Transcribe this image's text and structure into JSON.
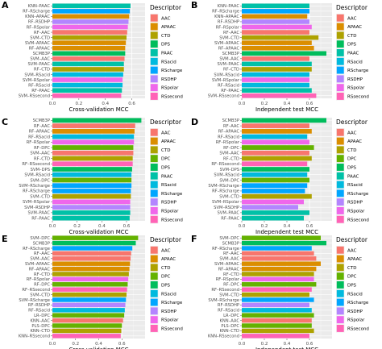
{
  "colors": {
    "AAC": "#F8766D",
    "APAAC": "#DB8E00",
    "CTD": "#AEA200",
    "DPC": "#64B200",
    "DPS": "#00BD5C",
    "PAAC": "#00C1A7",
    "RSacid": "#00BADE",
    "RScharge": "#00A6FF",
    "RSDHP": "#B385FF",
    "RSpolar": "#EF67EB",
    "RSsecond": "#FF63B6"
  },
  "chart_data": [
    {
      "panel": "A",
      "type": "bar",
      "orientation": "horizontal",
      "xlabel": "Cross-validation MCC",
      "xticks": [
        "0.0",
        "0.2",
        "0.4",
        "0.6"
      ],
      "xlim": [
        0,
        0.7
      ],
      "legend_title": "Descriptor",
      "legend": [
        "AAC",
        "APAAC",
        "CTD",
        "DPS",
        "PAAC",
        "RSacid",
        "RScharge",
        "RSDHP",
        "RSpolar",
        "RSsecond"
      ],
      "bars": [
        {
          "label": "KNN–PAAC",
          "value": 0.59,
          "descriptor": "PAAC"
        },
        {
          "label": "RF–RScharge",
          "value": 0.585,
          "descriptor": "RScharge"
        },
        {
          "label": "KNN–APAAC",
          "value": 0.58,
          "descriptor": "APAAC"
        },
        {
          "label": "RF–RSDHP",
          "value": 0.575,
          "descriptor": "RSDHP"
        },
        {
          "label": "RF–RSpolar",
          "value": 0.57,
          "descriptor": "RSpolar"
        },
        {
          "label": "RF–AAC",
          "value": 0.565,
          "descriptor": "AAC"
        },
        {
          "label": "SVM–CTD",
          "value": 0.56,
          "descriptor": "CTD"
        },
        {
          "label": "SVM–APAAC",
          "value": 0.555,
          "descriptor": "APAAC"
        },
        {
          "label": "RF–APAAC",
          "value": 0.55,
          "descriptor": "APAAC"
        },
        {
          "label": "SCMB3P",
          "value": 0.55,
          "descriptor": "DPS"
        },
        {
          "label": "SVM–AAC",
          "value": 0.545,
          "descriptor": "AAC"
        },
        {
          "label": "SVM–PAAC",
          "value": 0.54,
          "descriptor": "PAAC"
        },
        {
          "label": "RF–CTD",
          "value": 0.54,
          "descriptor": "CTD"
        },
        {
          "label": "SVM–RSacid",
          "value": 0.535,
          "descriptor": "RSacid"
        },
        {
          "label": "SVM–RSpolar",
          "value": 0.53,
          "descriptor": "RSpolar"
        },
        {
          "label": "RF–RSacid",
          "value": 0.53,
          "descriptor": "RSacid"
        },
        {
          "label": "RF–PAAC",
          "value": 0.525,
          "descriptor": "PAAC"
        },
        {
          "label": "SVM–RSsecond",
          "value": 0.52,
          "descriptor": "RSsecond"
        }
      ]
    },
    {
      "panel": "B",
      "type": "bar",
      "orientation": "horizontal",
      "xlabel": "Independent test MCC",
      "xticks": [
        "0.0",
        "0.2",
        "0.4",
        "0.6"
      ],
      "xlim": [
        0,
        0.8
      ],
      "legend_title": "Descriptor",
      "legend": [
        "AAC",
        "APAAC",
        "CTD",
        "DPS",
        "PAAC",
        "RSacid",
        "RScharge",
        "RSDHP",
        "RSpolar",
        "RSsecond"
      ],
      "bars": [
        {
          "label": "KNN–PAAC",
          "value": 0.6,
          "descriptor": "PAAC"
        },
        {
          "label": "RF–RScharge",
          "value": 0.6,
          "descriptor": "RScharge"
        },
        {
          "label": "KNN–APAAC",
          "value": 0.58,
          "descriptor": "APAAC"
        },
        {
          "label": "RF–RSDHP",
          "value": 0.6,
          "descriptor": "RSDHP"
        },
        {
          "label": "RF–RSpolar",
          "value": 0.62,
          "descriptor": "RSpolar"
        },
        {
          "label": "RF–AAC",
          "value": 0.6,
          "descriptor": "AAC"
        },
        {
          "label": "SVM–CTD",
          "value": 0.68,
          "descriptor": "CTD"
        },
        {
          "label": "SVM–APAAC",
          "value": 0.62,
          "descriptor": "APAAC"
        },
        {
          "label": "RF–APAAC",
          "value": 0.64,
          "descriptor": "APAAC"
        },
        {
          "label": "SCMB3P",
          "value": 0.75,
          "descriptor": "DPS"
        },
        {
          "label": "SVM–AAC",
          "value": 0.6,
          "descriptor": "AAC"
        },
        {
          "label": "SVM–PAAC",
          "value": 0.62,
          "descriptor": "PAAC"
        },
        {
          "label": "RF–CTD",
          "value": 0.62,
          "descriptor": "CTD"
        },
        {
          "label": "SVM–RSacid",
          "value": 0.6,
          "descriptor": "RSacid"
        },
        {
          "label": "SVM–RSpolar",
          "value": 0.6,
          "descriptor": "RSpolar"
        },
        {
          "label": "RF–RSacid",
          "value": 0.6,
          "descriptor": "RSacid"
        },
        {
          "label": "RF–PAAC",
          "value": 0.62,
          "descriptor": "PAAC"
        },
        {
          "label": "SVM–RSsecond",
          "value": 0.66,
          "descriptor": "RSsecond"
        }
      ]
    },
    {
      "panel": "C",
      "type": "bar",
      "orientation": "horizontal",
      "xlabel": "Cross-validation MCC",
      "xticks": [
        "0.0",
        "0.2",
        "0.4",
        "0.6"
      ],
      "xlim": [
        0,
        0.75
      ],
      "legend_title": "Descriptor",
      "legend": [
        "AAC",
        "APAAC",
        "CTD",
        "DPC",
        "DPS",
        "PAAC",
        "RSacid",
        "RScharge",
        "RSDHP",
        "RSpolar",
        "RSsecond"
      ],
      "bars": [
        {
          "label": "SCMB3P",
          "value": 0.72,
          "descriptor": "DPS"
        },
        {
          "label": "RF–AAC",
          "value": 0.67,
          "descriptor": "AAC"
        },
        {
          "label": "RF–APAAC",
          "value": 0.665,
          "descriptor": "APAAC"
        },
        {
          "label": "RF–RSacid",
          "value": 0.66,
          "descriptor": "RSacid"
        },
        {
          "label": "RF–RSpolar",
          "value": 0.66,
          "descriptor": "RSpolar"
        },
        {
          "label": "RF–DPC",
          "value": 0.655,
          "descriptor": "DPC"
        },
        {
          "label": "SVM–AAC",
          "value": 0.655,
          "descriptor": "AAC"
        },
        {
          "label": "RF–CTD",
          "value": 0.65,
          "descriptor": "CTD"
        },
        {
          "label": "RF–RSsecond",
          "value": 0.65,
          "descriptor": "RSsecond"
        },
        {
          "label": "SVM–DPS",
          "value": 0.645,
          "descriptor": "DPS"
        },
        {
          "label": "SVM–RSacid",
          "value": 0.64,
          "descriptor": "RSacid"
        },
        {
          "label": "SVM–DPC",
          "value": 0.64,
          "descriptor": "DPC"
        },
        {
          "label": "SVM–RScharge",
          "value": 0.64,
          "descriptor": "RScharge"
        },
        {
          "label": "RF–RScharge",
          "value": 0.635,
          "descriptor": "RScharge"
        },
        {
          "label": "SVM–CTD",
          "value": 0.635,
          "descriptor": "CTD"
        },
        {
          "label": "SVM–RSpolar",
          "value": 0.63,
          "descriptor": "RSpolar"
        },
        {
          "label": "SVM–RSDHP",
          "value": 0.63,
          "descriptor": "RSDHP"
        },
        {
          "label": "SVM–PAAC",
          "value": 0.63,
          "descriptor": "PAAC"
        },
        {
          "label": "RF–PAAC",
          "value": 0.625,
          "descriptor": "PAAC"
        }
      ]
    },
    {
      "panel": "D",
      "type": "bar",
      "orientation": "horizontal",
      "xlabel": "Independent test MCC",
      "xticks": [
        "0.0",
        "0.2",
        "0.4",
        "0.6"
      ],
      "xlim": [
        0,
        0.8
      ],
      "legend_title": "Descriptor",
      "legend": [
        "AAC",
        "APAAC",
        "CTD",
        "DPC",
        "DPS",
        "PAAC",
        "RSacid",
        "RScharge",
        "RSDHP",
        "RSpolar",
        "RSsecond"
      ],
      "bars": [
        {
          "label": "SCMB3P",
          "value": 0.75,
          "descriptor": "DPS"
        },
        {
          "label": "RF–AAC",
          "value": 0.6,
          "descriptor": "AAC"
        },
        {
          "label": "RF–APAAC",
          "value": 0.62,
          "descriptor": "APAAC"
        },
        {
          "label": "RF–RSacid",
          "value": 0.58,
          "descriptor": "RSacid"
        },
        {
          "label": "RF–RSpolar",
          "value": 0.6,
          "descriptor": "RSpolar"
        },
        {
          "label": "RF–DPC",
          "value": 0.64,
          "descriptor": "DPC"
        },
        {
          "label": "SVM–AAC",
          "value": 0.6,
          "descriptor": "AAC"
        },
        {
          "label": "RF–CTD",
          "value": 0.62,
          "descriptor": "CTD"
        },
        {
          "label": "RF–RSsecond",
          "value": 0.58,
          "descriptor": "RSsecond"
        },
        {
          "label": "SVM–DPS",
          "value": 0.6,
          "descriptor": "DPS"
        },
        {
          "label": "SVM–RSacid",
          "value": 0.58,
          "descriptor": "RSacid"
        },
        {
          "label": "SVM–DPC",
          "value": 0.6,
          "descriptor": "DPC"
        },
        {
          "label": "SVM–RScharge",
          "value": 0.58,
          "descriptor": "RScharge"
        },
        {
          "label": "RF–RScharge",
          "value": 0.56,
          "descriptor": "RScharge"
        },
        {
          "label": "SVM–CTD",
          "value": 0.62,
          "descriptor": "CTD"
        },
        {
          "label": "SVM–RSpolar",
          "value": 0.55,
          "descriptor": "RSpolar"
        },
        {
          "label": "SVM–RSDHP",
          "value": 0.5,
          "descriptor": "RSDHP"
        },
        {
          "label": "SVM–PAAC",
          "value": 0.6,
          "descriptor": "PAAC"
        },
        {
          "label": "RF–PAAC",
          "value": 0.55,
          "descriptor": "PAAC"
        }
      ]
    },
    {
      "panel": "E",
      "type": "bar",
      "orientation": "horizontal",
      "xlabel": "Cross-validation MCC",
      "xticks": [
        "0.0",
        "0.2",
        "0.4",
        "0.6"
      ],
      "xlim": [
        0,
        0.8
      ],
      "legend_title": "Descriptor",
      "legend": [
        "AAC",
        "APAAC",
        "CTD",
        "DPC",
        "DPS",
        "RSacid",
        "RScharge",
        "RSDHP",
        "RSpolar",
        "RSsecond"
      ],
      "bars": [
        {
          "label": "SVM–DPC",
          "value": 0.74,
          "descriptor": "DPC"
        },
        {
          "label": "SCMB3P",
          "value": 0.72,
          "descriptor": "DPS"
        },
        {
          "label": "RF–RScharge",
          "value": 0.69,
          "descriptor": "RScharge"
        },
        {
          "label": "RF–AAC",
          "value": 0.68,
          "descriptor": "AAC"
        },
        {
          "label": "SVM–AAC",
          "value": 0.675,
          "descriptor": "AAC"
        },
        {
          "label": "SVM–APAAC",
          "value": 0.67,
          "descriptor": "APAAC"
        },
        {
          "label": "RF–APAAC",
          "value": 0.665,
          "descriptor": "APAAC"
        },
        {
          "label": "RF–CTD",
          "value": 0.66,
          "descriptor": "CTD"
        },
        {
          "label": "RF–RSpolar",
          "value": 0.655,
          "descriptor": "RSpolar"
        },
        {
          "label": "RF–DPC",
          "value": 0.65,
          "descriptor": "DPC"
        },
        {
          "label": "RF–RSsecond",
          "value": 0.645,
          "descriptor": "RSsecond"
        },
        {
          "label": "SVM–CTD",
          "value": 0.64,
          "descriptor": "CTD"
        },
        {
          "label": "SVM–RScharge",
          "value": 0.635,
          "descriptor": "RScharge"
        },
        {
          "label": "RF–RSDHP",
          "value": 0.63,
          "descriptor": "RSDHP"
        },
        {
          "label": "RF–RSacid",
          "value": 0.625,
          "descriptor": "RSacid"
        },
        {
          "label": "LR–DPC",
          "value": 0.62,
          "descriptor": "DPC"
        },
        {
          "label": "KNN–AAC",
          "value": 0.61,
          "descriptor": "AAC"
        },
        {
          "label": "PLS–DPC",
          "value": 0.6,
          "descriptor": "DPC"
        },
        {
          "label": "KNN–CTD",
          "value": 0.595,
          "descriptor": "CTD"
        },
        {
          "label": "KNN–RSsecond",
          "value": 0.59,
          "descriptor": "RSsecond"
        }
      ]
    },
    {
      "panel": "F",
      "type": "bar",
      "orientation": "horizontal",
      "xlabel": "Independent test MCC",
      "xticks": [
        "0.0",
        "0.2",
        "0.4",
        "0.6"
      ],
      "xlim": [
        0,
        0.8
      ],
      "legend_title": "Descriptor",
      "legend": [
        "AAC",
        "APAAC",
        "CTD",
        "DPC",
        "DPS",
        "RSacid",
        "RScharge",
        "RSDHP",
        "RSpolar",
        "RSsecond"
      ],
      "bars": [
        {
          "label": "SVM–DPC",
          "value": 0.7,
          "descriptor": "DPC"
        },
        {
          "label": "SCMB3P",
          "value": 0.75,
          "descriptor": "DPS"
        },
        {
          "label": "RF–RScharge",
          "value": 0.62,
          "descriptor": "RScharge"
        },
        {
          "label": "RF–AAC",
          "value": 0.64,
          "descriptor": "AAC"
        },
        {
          "label": "SVM–AAC",
          "value": 0.66,
          "descriptor": "AAC"
        },
        {
          "label": "SVM–APAAC",
          "value": 0.7,
          "descriptor": "APAAC"
        },
        {
          "label": "RF–APAAC",
          "value": 0.66,
          "descriptor": "APAAC"
        },
        {
          "label": "RF–CTD",
          "value": 0.64,
          "descriptor": "CTD"
        },
        {
          "label": "RF–RSpolar",
          "value": 0.64,
          "descriptor": "RSpolar"
        },
        {
          "label": "RF–DPC",
          "value": 0.66,
          "descriptor": "DPC"
        },
        {
          "label": "RF–RSsecond",
          "value": 0.62,
          "descriptor": "RSsecond"
        },
        {
          "label": "SVM–CTD",
          "value": 0.6,
          "descriptor": "CTD"
        },
        {
          "label": "SVM–RScharge",
          "value": 0.64,
          "descriptor": "RScharge"
        },
        {
          "label": "RF–RSDHP",
          "value": 0.6,
          "descriptor": "RSDHP"
        },
        {
          "label": "RF–RSacid",
          "value": 0.62,
          "descriptor": "RSacid"
        },
        {
          "label": "LR–DPC",
          "value": 0.64,
          "descriptor": "DPC"
        },
        {
          "label": "KNN–AAC",
          "value": 0.62,
          "descriptor": "AAC"
        },
        {
          "label": "PLS–DPC",
          "value": 0.62,
          "descriptor": "DPC"
        },
        {
          "label": "KNN–CTD",
          "value": 0.64,
          "descriptor": "CTD"
        },
        {
          "label": "KNN–RSsecond",
          "value": 0.6,
          "descriptor": "RSsecond"
        }
      ]
    }
  ]
}
